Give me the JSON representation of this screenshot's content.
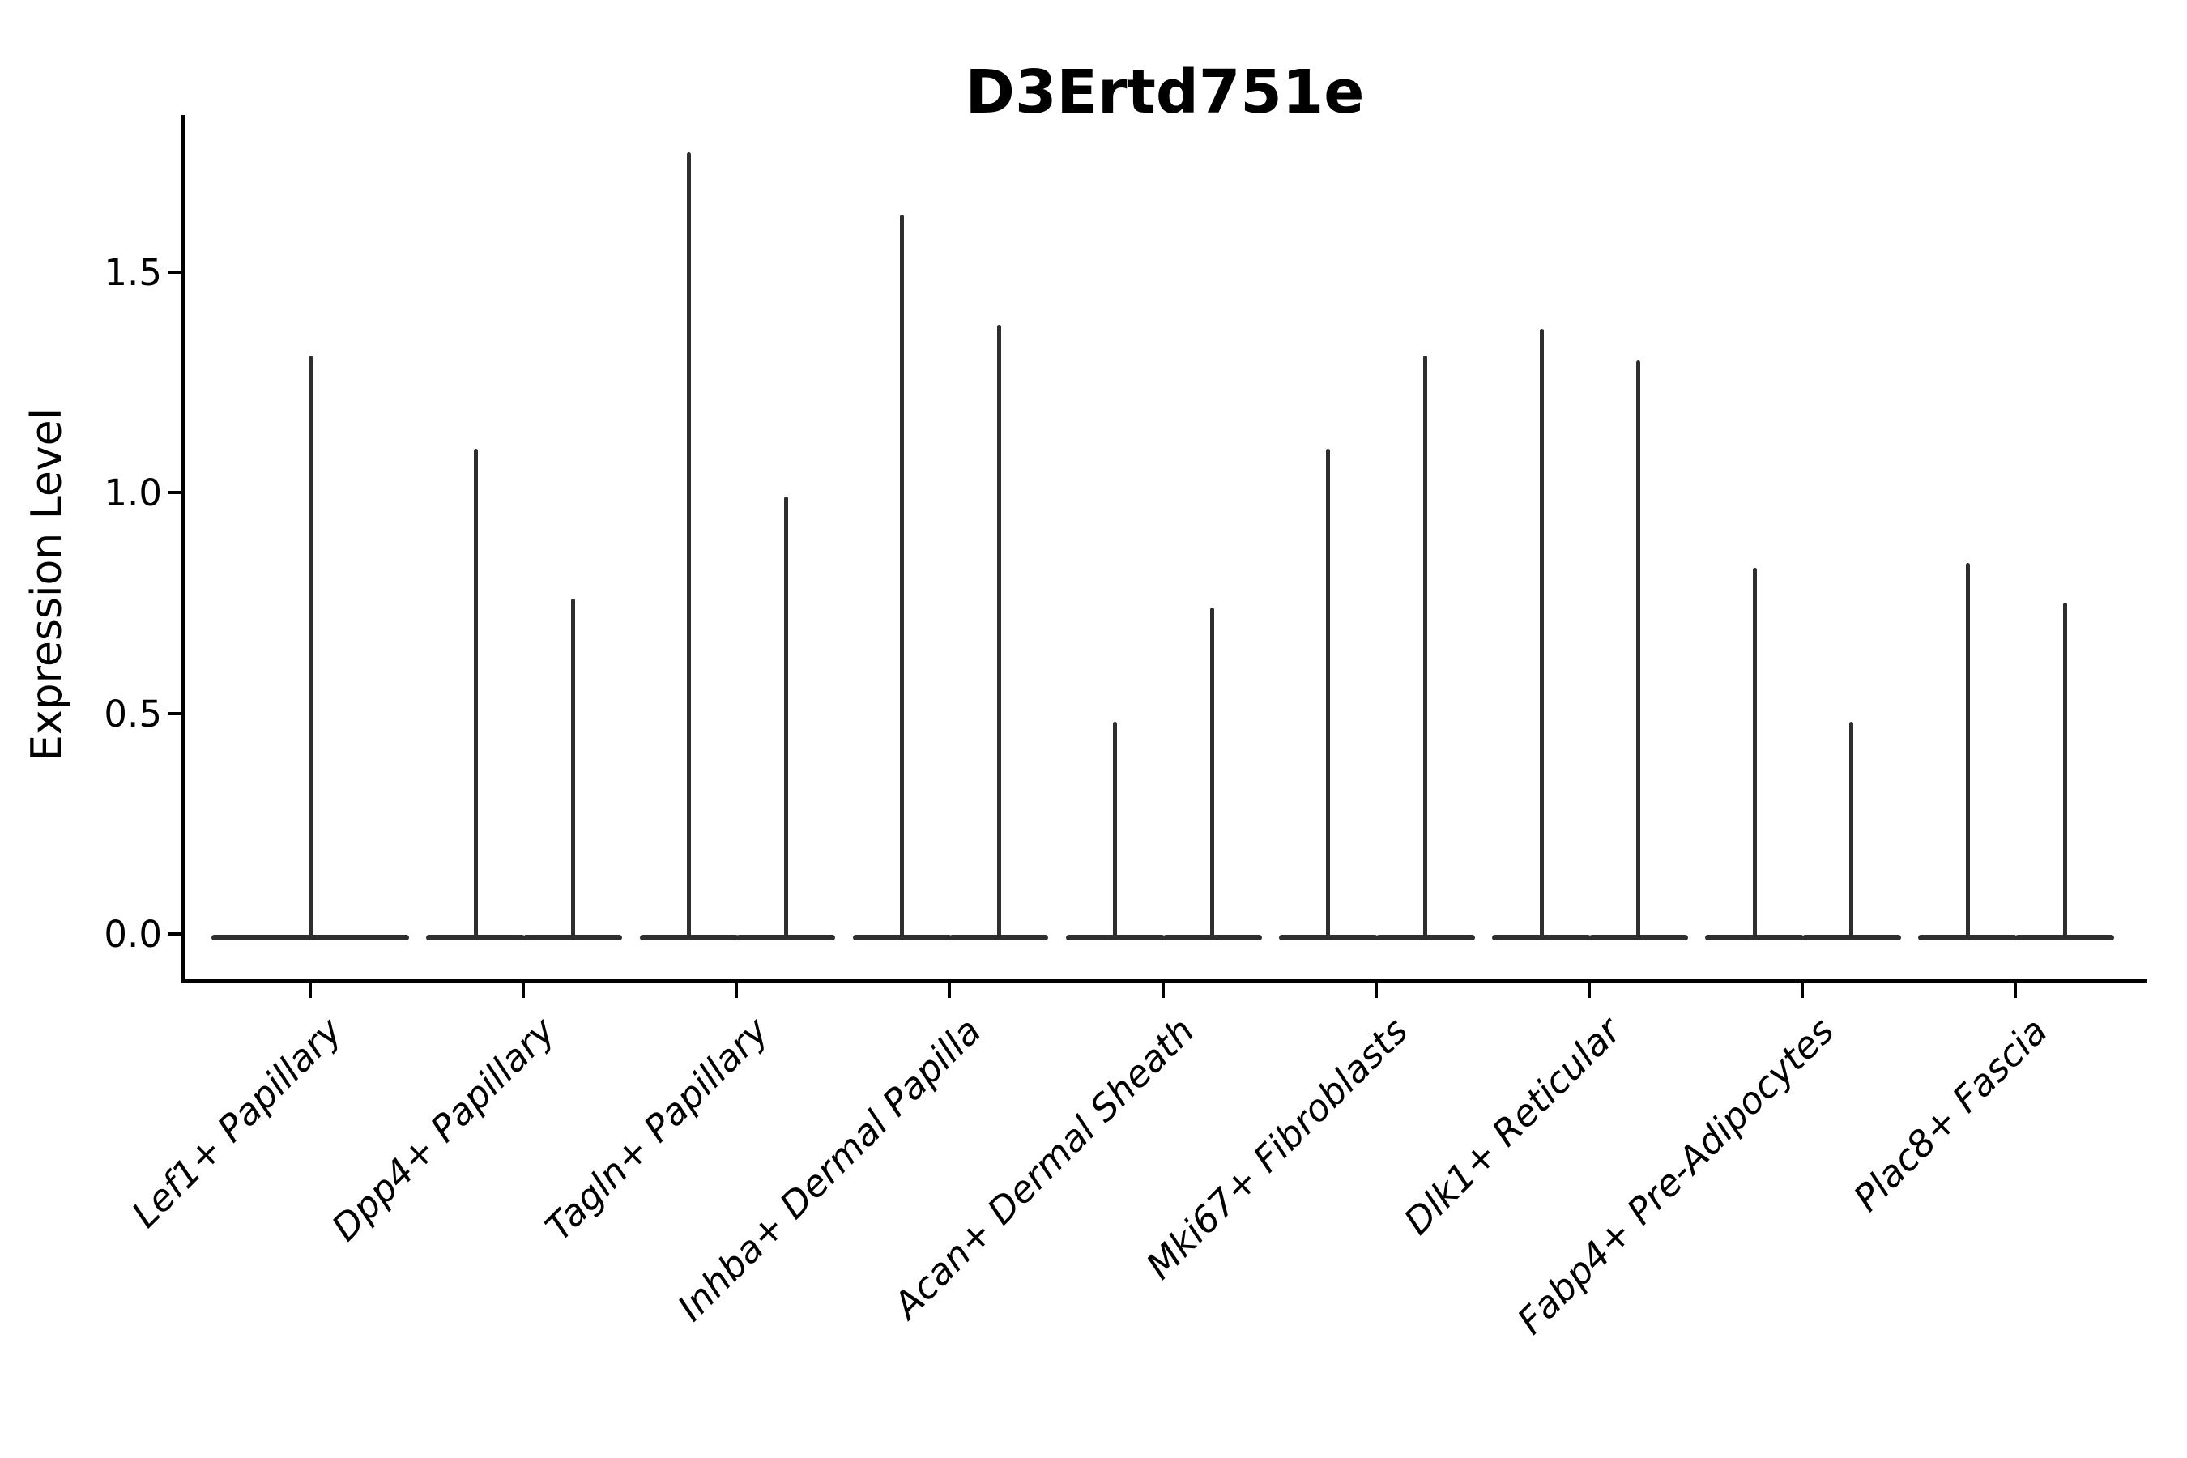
{
  "title": "D3Ertd751e",
  "chart_data": {
    "type": "violin",
    "title": "D3Ertd751e",
    "xlabel": "",
    "ylabel": "Expression Level",
    "categories": [
      "Lef1+ Papillary",
      "Dpp4+ Papillary",
      "Tagln+ Papillary",
      "Inhba+ Dermal Papilla",
      "Acan+ Dermal Sheath",
      "Mki67+ Fibroblasts",
      "Dlk1+ Reticular",
      "Fabp4+ Pre-Adipocytes",
      "Plac8+ Fascia"
    ],
    "yticks": [
      0.0,
      0.5,
      1.0,
      1.5
    ],
    "ytick_labels": [
      "0.0",
      "0.5",
      "1.0",
      "1.5"
    ],
    "ylim": [
      -0.1,
      1.86
    ],
    "grid": false,
    "legend": null,
    "violin_style": "needle (flat wide base at 0 with thin spike to max)",
    "violins": [
      {
        "category": "Lef1+ Papillary",
        "group": "single",
        "offset": 0.0,
        "halfwidth": 0.465,
        "baseline_value": 0.0,
        "max_value": 1.31
      },
      {
        "category": "Dpp4+ Papillary",
        "group": "left",
        "offset": -0.223,
        "halfwidth": 0.232,
        "baseline_value": 0.0,
        "max_value": 1.1
      },
      {
        "category": "Dpp4+ Papillary",
        "group": "right",
        "offset": 0.232,
        "halfwidth": 0.232,
        "baseline_value": 0.0,
        "max_value": 0.76
      },
      {
        "category": "Tagln+ Papillary",
        "group": "left",
        "offset": -0.223,
        "halfwidth": 0.232,
        "baseline_value": 0.0,
        "max_value": 1.77
      },
      {
        "category": "Tagln+ Papillary",
        "group": "right",
        "offset": 0.232,
        "halfwidth": 0.232,
        "baseline_value": 0.0,
        "max_value": 0.99
      },
      {
        "category": "Inhba+ Dermal Papilla",
        "group": "left",
        "offset": -0.223,
        "halfwidth": 0.232,
        "baseline_value": 0.0,
        "max_value": 1.63
      },
      {
        "category": "Inhba+ Dermal Papilla",
        "group": "right",
        "offset": 0.232,
        "halfwidth": 0.232,
        "baseline_value": 0.0,
        "max_value": 1.38
      },
      {
        "category": "Acan+ Dermal Sheath",
        "group": "left",
        "offset": -0.223,
        "halfwidth": 0.232,
        "baseline_value": 0.0,
        "max_value": 0.48
      },
      {
        "category": "Acan+ Dermal Sheath",
        "group": "right",
        "offset": 0.232,
        "halfwidth": 0.232,
        "baseline_value": 0.0,
        "max_value": 0.74
      },
      {
        "category": "Mki67+ Fibroblasts",
        "group": "left",
        "offset": -0.223,
        "halfwidth": 0.232,
        "baseline_value": 0.0,
        "max_value": 1.1
      },
      {
        "category": "Mki67+ Fibroblasts",
        "group": "right",
        "offset": 0.232,
        "halfwidth": 0.232,
        "baseline_value": 0.0,
        "max_value": 1.31
      },
      {
        "category": "Dlk1+ Reticular",
        "group": "left",
        "offset": -0.223,
        "halfwidth": 0.232,
        "baseline_value": 0.0,
        "max_value": 1.37
      },
      {
        "category": "Dlk1+ Reticular",
        "group": "right",
        "offset": 0.232,
        "halfwidth": 0.232,
        "baseline_value": 0.0,
        "max_value": 1.3
      },
      {
        "category": "Fabp4+ Pre-Adipocytes",
        "group": "left",
        "offset": -0.223,
        "halfwidth": 0.232,
        "baseline_value": 0.0,
        "max_value": 0.83
      },
      {
        "category": "Fabp4+ Pre-Adipocytes",
        "group": "right",
        "offset": 0.232,
        "halfwidth": 0.232,
        "baseline_value": 0.0,
        "max_value": 0.48
      },
      {
        "category": "Plac8+ Fascia",
        "group": "left",
        "offset": -0.223,
        "halfwidth": 0.232,
        "baseline_value": 0.0,
        "max_value": 0.84
      },
      {
        "category": "Plac8+ Fascia",
        "group": "right",
        "offset": 0.232,
        "halfwidth": 0.232,
        "baseline_value": 0.0,
        "max_value": 0.75
      }
    ],
    "colors": {
      "violin_stroke": "#2e2e2e",
      "spine": "#000000",
      "text": "#000000",
      "background": "#ffffff"
    }
  }
}
